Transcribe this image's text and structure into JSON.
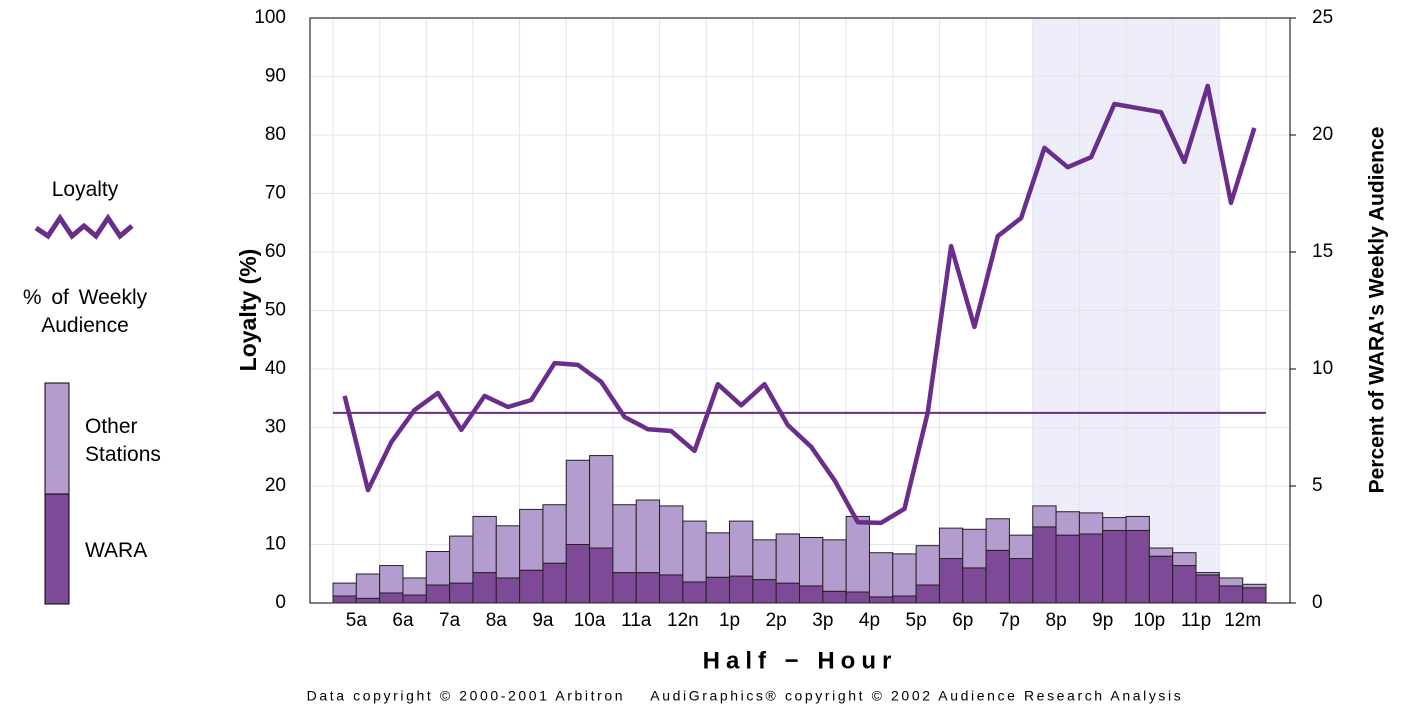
{
  "chart_data": {
    "type": "bar_line",
    "xlabel": "Half − Hour",
    "ylabel": "Loyalty (%)",
    "y2label": "Percent of WARA's Weekly Audience",
    "footer": "Data copyright © 2000-2001 Arbitron    AudiGraphics® copyright © 2002 Audience Research Analysis",
    "legend_title": "% of Weekly Audience",
    "categories": [
      "5a",
      null,
      "6a",
      null,
      "7a",
      null,
      "8a",
      null,
      "9a",
      null,
      "10a",
      null,
      "11a",
      null,
      "12n",
      null,
      "1p",
      null,
      "2p",
      null,
      "3p",
      null,
      "4p",
      null,
      "5p",
      null,
      "6p",
      null,
      "7p",
      null,
      "8p",
      null,
      "9p",
      null,
      "10p",
      null,
      "11p",
      null,
      "12m",
      null
    ],
    "series": [
      {
        "name": "Loyalty",
        "kind": "line",
        "axis": "y",
        "color": "#6b2d8c",
        "values": [
          35.4,
          19.3,
          27.5,
          33,
          35.9,
          29.6,
          35.4,
          33.5,
          34.7,
          41,
          40.7,
          37.8,
          31.8,
          29.7,
          29.4,
          26,
          37.4,
          33.8,
          37.4,
          30.4,
          26.7,
          21,
          13.8,
          13.7,
          16.1,
          32.6,
          61,
          47.2,
          62.7,
          65.8,
          77.8,
          74.5,
          76.2,
          85.3,
          84.6,
          83.9,
          75.4,
          88.4,
          68.4,
          81.2
        ]
      },
      {
        "name": "WARA",
        "kind": "bar",
        "axis": "y2",
        "color": "#7e4a98",
        "values": [
          0.3,
          0.2,
          0.43,
          0.34,
          0.77,
          0.85,
          1.3,
          1.07,
          1.4,
          1.7,
          2.5,
          2.35,
          1.3,
          1.3,
          1.2,
          0.9,
          1.1,
          1.15,
          1.0,
          0.85,
          0.73,
          0.5,
          0.47,
          0.26,
          0.3,
          0.77,
          1.9,
          1.5,
          2.25,
          1.9,
          3.25,
          2.9,
          2.95,
          3.1,
          3.1,
          2.0,
          1.6,
          1.2,
          0.73,
          0.65
        ]
      },
      {
        "name": "Other Stations",
        "kind": "bar",
        "axis": "y2",
        "color": "#b49ccf",
        "values": [
          0.55,
          1.04,
          1.17,
          0.73,
          1.43,
          2.01,
          2.4,
          2.23,
          2.6,
          2.5,
          3.6,
          3.95,
          2.9,
          3.1,
          2.95,
          2.6,
          1.9,
          2.35,
          1.7,
          2.1,
          2.07,
          2.2,
          3.23,
          1.89,
          1.8,
          1.68,
          1.3,
          1.65,
          1.35,
          1.0,
          0.9,
          1.0,
          0.9,
          0.55,
          0.6,
          0.35,
          0.55,
          0.1,
          0.34,
          0.15
        ]
      }
    ],
    "reference_y": 32.5,
    "highlight": [
      30,
      37
    ],
    "ylim": [
      0,
      100
    ],
    "yticks": [
      0,
      10,
      20,
      30,
      40,
      50,
      60,
      70,
      80,
      90,
      100
    ],
    "y2lim": [
      0,
      25
    ],
    "y2ticks": [
      0,
      5,
      10,
      15,
      20,
      25
    ],
    "grid": true
  }
}
